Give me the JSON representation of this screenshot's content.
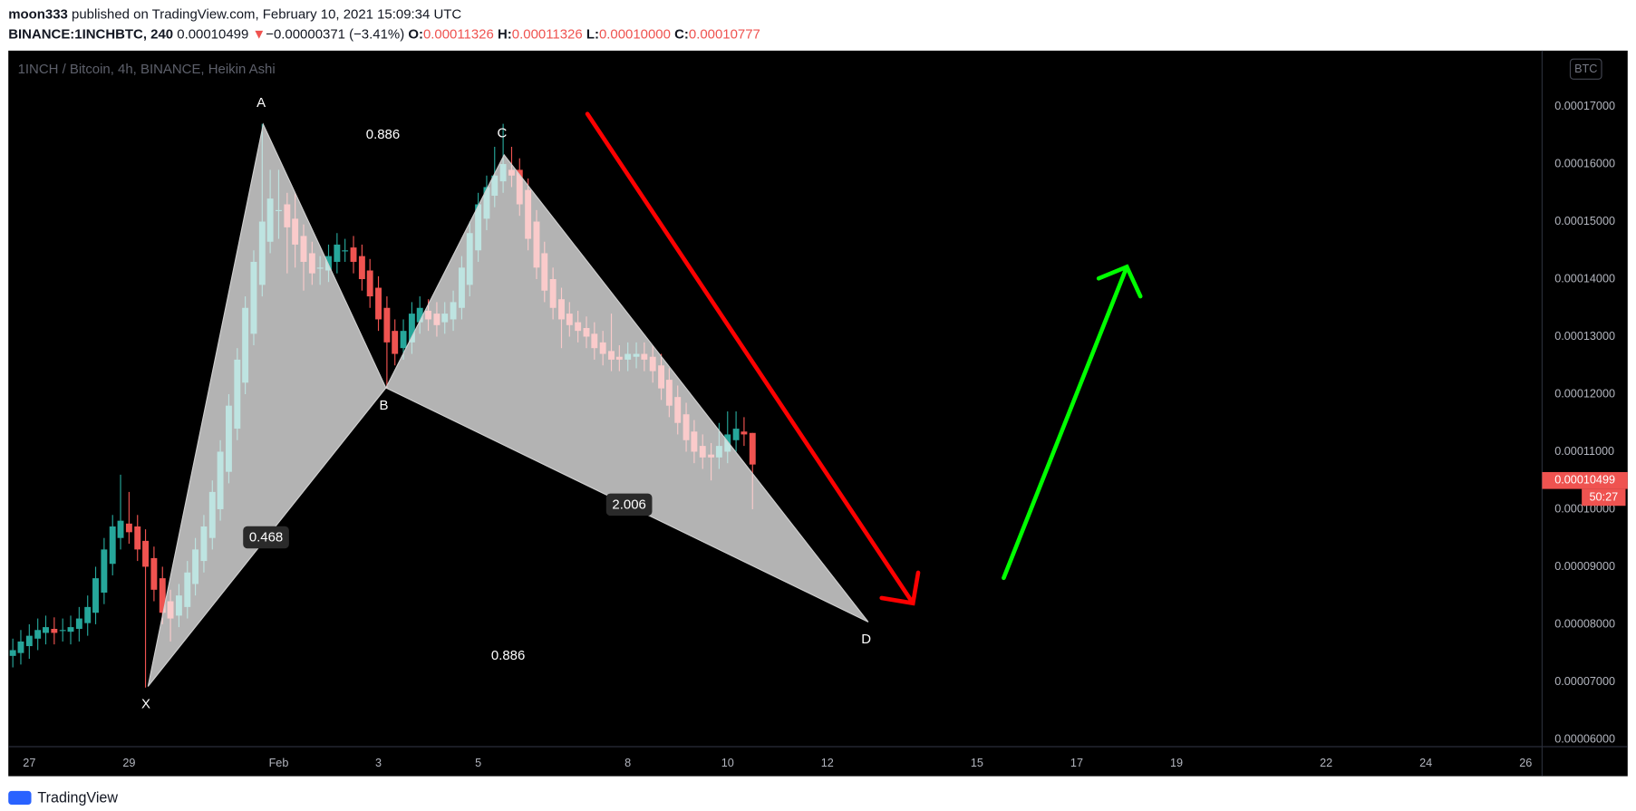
{
  "header": {
    "author": "moon333",
    "published": "published on TradingView.com, February 10, 2021 15:09:34 UTC",
    "symbol": "BINANCE:1INCHBTC, 240",
    "last": "0.00010499",
    "change_arrow": "▼",
    "change": "−0.00000371 (−3.41%)",
    "ohlc": [
      {
        "label": "O:",
        "value": "0.00011326"
      },
      {
        "label": "H:",
        "value": "0.00011326"
      },
      {
        "label": "L:",
        "value": "0.00010000"
      },
      {
        "label": "C:",
        "value": "0.00010777"
      }
    ]
  },
  "chart_data": {
    "type": "candlestick",
    "title": "1INCH / Bitcoin, 4h, BINANCE, Heikin Ashi",
    "currency": "BTC",
    "up_color": "#26a69a",
    "down_color": "#ef5350",
    "grid": false,
    "x": [
      -0.33,
      -0.17,
      0,
      0.17,
      0.33,
      0.5,
      0.67,
      0.83,
      1,
      1.17,
      1.33,
      1.5,
      1.67,
      1.83,
      2,
      2.17,
      2.33,
      2.5,
      2.67,
      2.83,
      3,
      3.17,
      3.33,
      3.5,
      3.67,
      3.83,
      4,
      4.17,
      4.33,
      4.5,
      4.67,
      4.83,
      5,
      5.17,
      5.33,
      5.5,
      5.67,
      5.83,
      6,
      6.17,
      6.33,
      6.5,
      6.67,
      6.83,
      7,
      7.17,
      7.33,
      7.5,
      7.67,
      7.83,
      8,
      8.17,
      8.33,
      8.5,
      8.67,
      8.83,
      9,
      9.17,
      9.33,
      9.5,
      9.67,
      9.83,
      10,
      10.17,
      10.33,
      10.5,
      10.67,
      10.83,
      11,
      11.17,
      11.33,
      11.5,
      11.67,
      11.83,
      12,
      12.17,
      12.33,
      12.5,
      12.67,
      12.83,
      13,
      13.17,
      13.33,
      13.5,
      13.67,
      13.83,
      14,
      14.17,
      14.33,
      14.5
    ],
    "open": [
      7.45e-05,
      7.5e-05,
      7.62e-05,
      7.75e-05,
      7.85e-05,
      7.92e-05,
      7.9e-05,
      7.87e-05,
      7.92e-05,
      8.02e-05,
      8.2e-05,
      8.55e-05,
      9.05e-05,
      9.5e-05,
      9.75e-05,
      9.7e-05,
      9.45e-05,
      9.15e-05,
      8.8e-05,
      8.4e-05,
      8.15e-05,
      8.3e-05,
      8.7e-05,
      9.1e-05,
      9.5e-05,
      0.0001,
      0.0001065,
      0.000114,
      0.000122,
      0.0001305,
      0.000139,
      0.0001465,
      0.000152,
      0.000153,
      0.0001505,
      0.0001475,
      0.0001445,
      0.000142,
      0.0001415,
      0.000143,
      0.000145,
      0.0001455,
      0.000144,
      0.0001415,
      0.0001385,
      0.000135,
      0.000131,
      0.000128,
      0.000129,
      0.0001325,
      0.0001345,
      0.000134,
      0.0001325,
      0.000133,
      0.000135,
      0.000139,
      0.000145,
      0.0001505,
      0.0001545,
      0.000157,
      0.000159,
      0.000159,
      0.0001555,
      0.00015,
      0.0001445,
      0.00014,
      0.0001365,
      0.000134,
      0.0001325,
      0.0001315,
      0.0001305,
      0.000129,
      0.0001275,
      0.0001265,
      0.000126,
      0.0001265,
      0.000127,
      0.0001265,
      0.000125,
      0.0001225,
      0.0001195,
      0.0001165,
      0.0001135,
      0.000111,
      0.0001095,
      0.000109,
      0.00011,
      0.000112,
      0.0001135,
      0.00011326
    ],
    "high": [
      7.75e-05,
      7.9e-05,
      8e-05,
      8.1e-05,
      8.15e-05,
      8.12e-05,
      8.1e-05,
      8.15e-05,
      8.3e-05,
      8.5e-05,
      9e-05,
      9.5e-05,
      9.9e-05,
      0.000106,
      0.000103,
      9.9e-05,
      9.65e-05,
      9.35e-05,
      9e-05,
      8.6e-05,
      8.7e-05,
      9.1e-05,
      9.5e-05,
      9.9e-05,
      0.000105,
      0.000112,
      0.00012,
      0.000128,
      0.000137,
      0.000145,
      0.000167,
      0.000159,
      0.000159,
      0.000155,
      0.000155,
      0.0001495,
      0.0001465,
      0.000144,
      0.000146,
      0.000148,
      0.000147,
      0.0001475,
      0.000146,
      0.0001435,
      0.0001405,
      0.000137,
      0.000133,
      0.000133,
      0.000136,
      0.000137,
      0.0001365,
      0.000136,
      0.000136,
      0.000138,
      0.000144,
      0.00015,
      0.000155,
      0.000158,
      0.000163,
      0.000167,
      0.000163,
      0.000161,
      0.0001575,
      0.000152,
      0.0001465,
      0.000142,
      0.0001385,
      0.000136,
      0.0001345,
      0.0001335,
      0.0001325,
      0.000131,
      0.000134,
      0.0001285,
      0.000129,
      0.000129,
      0.000129,
      0.0001285,
      0.000127,
      0.0001245,
      0.0001215,
      0.0001185,
      0.0001155,
      0.000113,
      0.0001115,
      0.000115,
      0.000117,
      0.000117,
      0.000116,
      0.00011326
    ],
    "low": [
      7.25e-05,
      7.3e-05,
      7.4e-05,
      7.55e-05,
      7.65e-05,
      7.65e-05,
      7.7e-05,
      7.65e-05,
      7.7e-05,
      7.8e-05,
      8e-05,
      8.35e-05,
      8.85e-05,
      9.3e-05,
      9.4e-05,
      9.1e-05,
      6.9e-05,
      8.4e-05,
      8e-05,
      7.7e-05,
      7.95e-05,
      8.1e-05,
      8.5e-05,
      8.9e-05,
      9.3e-05,
      9.8e-05,
      0.0001045,
      0.000112,
      0.00012,
      0.0001285,
      0.000137,
      0.0001445,
      0.000147,
      0.000141,
      0.000142,
      0.000138,
      0.000139,
      0.000139,
      0.0001395,
      0.000141,
      0.000143,
      0.000141,
      0.000138,
      0.000135,
      0.000131,
      0.000121,
      0.000125,
      0.000126,
      0.000127,
      0.0001305,
      0.000131,
      0.00013,
      0.0001305,
      0.000131,
      0.000133,
      0.000137,
      0.000143,
      0.0001485,
      0.0001525,
      0.000155,
      0.000156,
      0.000151,
      0.000145,
      0.00014,
      0.000136,
      0.000133,
      0.000128,
      0.00013,
      0.000129,
      0.000128,
      0.000126,
      0.000125,
      0.000124,
      0.000124,
      0.000124,
      0.0001245,
      0.000124,
      0.000122,
      0.000119,
      0.000116,
      0.000113,
      0.00011,
      0.000108,
      0.000107,
      0.000105,
      0.000107,
      0.000108,
      0.00011,
      0.000111,
      0.0001
    ],
    "close": [
      7.55e-05,
      7.7e-05,
      7.8e-05,
      7.9e-05,
      7.95e-05,
      7.85e-05,
      7.9e-05,
      7.95e-05,
      8.1e-05,
      8.3e-05,
      8.8e-05,
      9.3e-05,
      9.7e-05,
      9.8e-05,
      9.6e-05,
      9.3e-05,
      9e-05,
      8.6e-05,
      8.2e-05,
      8.1e-05,
      8.5e-05,
      8.9e-05,
      9.3e-05,
      9.7e-05,
      0.000103,
      0.00011,
      0.000118,
      0.000126,
      0.000135,
      0.000143,
      0.00015,
      0.000154,
      0.000152,
      0.000149,
      0.000146,
      0.000143,
      0.000141,
      0.000142,
      0.000144,
      0.000146,
      0.000145,
      0.000143,
      0.00014,
      0.000137,
      0.000133,
      0.000129,
      0.000127,
      0.000131,
      0.000134,
      0.000135,
      0.000133,
      0.000132,
      0.000134,
      0.000136,
      0.000142,
      0.000148,
      0.000153,
      0.000156,
      0.000158,
      0.00016,
      0.000158,
      0.000153,
      0.000147,
      0.000142,
      0.000138,
      0.000135,
      0.000133,
      0.000132,
      0.000131,
      0.00013,
      0.000128,
      0.000127,
      0.000126,
      0.000126,
      0.000127,
      0.000127,
      0.000126,
      0.000124,
      0.000121,
      0.000118,
      0.000115,
      0.000112,
      0.00011,
      0.000109,
      0.000109,
      0.000111,
      0.000113,
      0.000114,
      0.000113,
      0.00010777
    ],
    "xlim": [
      -0.42,
      30.33
    ],
    "xticks": [
      {
        "value": 0,
        "label": "27"
      },
      {
        "value": 2,
        "label": "29"
      },
      {
        "value": 5,
        "label": "Feb"
      },
      {
        "value": 7,
        "label": "3"
      },
      {
        "value": 9,
        "label": "5"
      },
      {
        "value": 12,
        "label": "8"
      },
      {
        "value": 14,
        "label": "10"
      },
      {
        "value": 16,
        "label": "12"
      },
      {
        "value": 19,
        "label": "15"
      },
      {
        "value": 21,
        "label": "17"
      },
      {
        "value": 23,
        "label": "19"
      },
      {
        "value": 26,
        "label": "22"
      },
      {
        "value": 28,
        "label": "24"
      },
      {
        "value": 30,
        "label": "26"
      }
    ],
    "ylim": [
      5.872e-05,
      0.00017972
    ],
    "yticks": [
      {
        "value": 0.00017,
        "label": "0.00017000"
      },
      {
        "value": 0.00016,
        "label": "0.00016000"
      },
      {
        "value": 0.00015,
        "label": "0.00015000"
      },
      {
        "value": 0.00014,
        "label": "0.00014000"
      },
      {
        "value": 0.00013,
        "label": "0.00013000"
      },
      {
        "value": 0.00012,
        "label": "0.00012000"
      },
      {
        "value": 0.00011,
        "label": "0.00011000"
      },
      {
        "value": 0.0001,
        "label": "0.00010000"
      },
      {
        "value": 9e-05,
        "label": "0.00009000"
      },
      {
        "value": 8e-05,
        "label": "0.00008000"
      },
      {
        "value": 7e-05,
        "label": "0.00007000"
      },
      {
        "value": 6e-05,
        "label": "0.00006000"
      }
    ],
    "last_price": {
      "value": 0.00010499,
      "label": "0.00010499",
      "countdown": "50:27"
    },
    "pattern": {
      "points": [
        {
          "label": "X",
          "x": 2.38,
          "y": 6.92e-05
        },
        {
          "label": "A",
          "x": 4.69,
          "y": 0.0001669
        },
        {
          "label": "B",
          "x": 7.15,
          "y": 0.0001211
        },
        {
          "label": "C",
          "x": 9.52,
          "y": 0.0001616
        },
        {
          "label": "D",
          "x": 16.82,
          "y": 8.04e-05
        }
      ],
      "ratios": [
        "0.886",
        "0.468",
        "2.006",
        "0.886"
      ]
    }
  },
  "footer": {
    "brand": "TradingView"
  }
}
